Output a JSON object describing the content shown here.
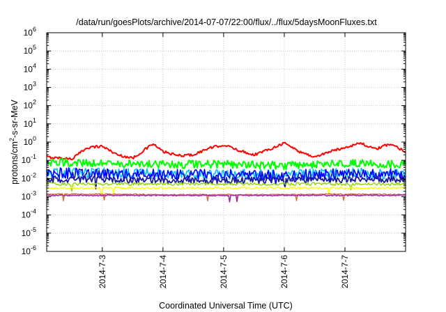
{
  "chart_data": {
    "type": "line",
    "title": "/data/run/goesPlots/archive/2014-07-07/22:00/flux/../flux/5daysMoonFluxes.txt",
    "xlabel": "Coordinated Universal Time (UTC)",
    "ylabel_parts": [
      "protons/cm",
      "2",
      "-s-sr-MeV"
    ],
    "y_scale": "log",
    "ylim": [
      1e-06,
      1000000.0
    ],
    "y_ticks": [
      {
        "base": "10",
        "exp": "-6",
        "value": 1e-06
      },
      {
        "base": "10",
        "exp": "-5",
        "value": 1e-05
      },
      {
        "base": "10",
        "exp": "-4",
        "value": 0.0001
      },
      {
        "base": "10",
        "exp": "-3",
        "value": 0.001
      },
      {
        "base": "10",
        "exp": "-2",
        "value": 0.01
      },
      {
        "base": "10",
        "exp": "-1",
        "value": 0.1
      },
      {
        "base": "10",
        "exp": "0",
        "value": 1
      },
      {
        "base": "10",
        "exp": "1",
        "value": 10
      },
      {
        "base": "10",
        "exp": "2",
        "value": 100
      },
      {
        "base": "10",
        "exp": "3",
        "value": 1000
      },
      {
        "base": "10",
        "exp": "4",
        "value": 10000
      },
      {
        "base": "10",
        "exp": "5",
        "value": 100000
      },
      {
        "base": "10",
        "exp": "6",
        "value": 1000000
      }
    ],
    "xlim": [
      "2014-07-02T02:00",
      "2014-07-07T23:59"
    ],
    "x_ticks": [
      {
        "label": "2014-7-3",
        "value": "2014-07-03T00:00"
      },
      {
        "label": "2014-7-4",
        "value": "2014-07-04T00:00"
      },
      {
        "label": "2014-7-5",
        "value": "2014-07-05T00:00"
      },
      {
        "label": "2014-7-6",
        "value": "2014-07-06T00:00"
      },
      {
        "label": "2014-7-7",
        "value": "2014-07-07T00:00"
      }
    ],
    "grid": true,
    "legend": "none",
    "series": [
      {
        "color": "#ff0000",
        "x": [
          "2014-07-02T02:00",
          "2014-07-02T12:00",
          "2014-07-02T18:00",
          "2014-07-03T00:00",
          "2014-07-03T06:00",
          "2014-07-03T12:00",
          "2014-07-03T14:00",
          "2014-07-03T20:00",
          "2014-07-04T00:00",
          "2014-07-04T06:00",
          "2014-07-04T12:00",
          "2014-07-04T18:00",
          "2014-07-05T00:00",
          "2014-07-05T06:00",
          "2014-07-05T12:00",
          "2014-07-05T18:00",
          "2014-07-06T00:00",
          "2014-07-06T06:00",
          "2014-07-06T12:00",
          "2014-07-06T18:00",
          "2014-07-07T00:00",
          "2014-07-07T06:00",
          "2014-07-07T12:00",
          "2014-07-07T18:00",
          "2014-07-07T23:59"
        ],
        "y": [
          0.15,
          0.12,
          0.5,
          0.6,
          0.2,
          0.13,
          0.2,
          0.8,
          0.3,
          0.18,
          0.2,
          0.45,
          0.7,
          0.35,
          0.2,
          0.4,
          0.9,
          0.3,
          0.15,
          0.3,
          0.5,
          0.9,
          0.4,
          0.8,
          0.3
        ]
      },
      {
        "color": "#00ff00",
        "x": [
          "2014-07-02T02:00",
          "2014-07-03T00:00",
          "2014-07-04T00:00",
          "2014-07-05T00:00",
          "2014-07-06T00:00",
          "2014-07-07T00:00",
          "2014-07-07T23:59"
        ],
        "y": [
          0.08,
          0.07,
          0.06,
          0.06,
          0.05,
          0.07,
          0.06
        ]
      },
      {
        "color": "#00bfff",
        "x": [
          "2014-07-02T02:00",
          "2014-07-03T00:00",
          "2014-07-04T00:00",
          "2014-07-05T00:00",
          "2014-07-06T00:00",
          "2014-07-07T00:00",
          "2014-07-07T23:59"
        ],
        "y": [
          0.02,
          0.02,
          0.018,
          0.017,
          0.016,
          0.02,
          0.018
        ]
      },
      {
        "color": "#0000ff",
        "x": [
          "2014-07-02T02:00",
          "2014-07-03T00:00",
          "2014-07-04T00:00",
          "2014-07-05T00:00",
          "2014-07-06T00:00",
          "2014-07-07T00:00",
          "2014-07-07T23:59"
        ],
        "y": [
          0.02,
          0.018,
          0.017,
          0.016,
          0.015,
          0.018,
          0.017
        ]
      },
      {
        "color": "#1a1aa0",
        "x": [
          "2014-07-02T02:00",
          "2014-07-03T00:00",
          "2014-07-04T00:00",
          "2014-07-05T00:00",
          "2014-07-06T00:00",
          "2014-07-07T00:00",
          "2014-07-07T23:59"
        ],
        "y": [
          0.009,
          0.009,
          0.008,
          0.008,
          0.008,
          0.009,
          0.009
        ]
      },
      {
        "color": "#8fd400",
        "x": [
          "2014-07-02T02:00",
          "2014-07-03T00:00",
          "2014-07-04T00:00",
          "2014-07-05T00:00",
          "2014-07-06T00:00",
          "2014-07-07T00:00",
          "2014-07-07T23:59"
        ],
        "y": [
          0.005,
          0.005,
          0.005,
          0.005,
          0.005,
          0.005,
          0.005
        ]
      },
      {
        "color": "#ffff00",
        "x": [
          "2014-07-02T02:00",
          "2014-07-03T00:00",
          "2014-07-04T00:00",
          "2014-07-05T00:00",
          "2014-07-06T00:00",
          "2014-07-07T00:00",
          "2014-07-07T23:59"
        ],
        "y": [
          0.003,
          0.003,
          0.003,
          0.003,
          0.003,
          0.003,
          0.003
        ]
      },
      {
        "color": "#d96a2b",
        "x": [
          "2014-07-02T02:00",
          "2014-07-03T00:00",
          "2014-07-04T00:00",
          "2014-07-05T00:00",
          "2014-07-06T00:00",
          "2014-07-07T00:00",
          "2014-07-07T23:59"
        ],
        "y": [
          0.0014,
          0.0014,
          0.0013,
          0.0013,
          0.0013,
          0.0014,
          0.0013
        ]
      },
      {
        "color": "#9b2d9b",
        "x": [
          "2014-07-02T02:00",
          "2014-07-03T00:00",
          "2014-07-04T00:00",
          "2014-07-05T00:00",
          "2014-07-06T00:00",
          "2014-07-07T00:00",
          "2014-07-07T23:59"
        ],
        "y": [
          0.0012,
          0.0012,
          0.0012,
          0.0012,
          0.0012,
          0.0012,
          0.0012
        ]
      }
    ]
  }
}
